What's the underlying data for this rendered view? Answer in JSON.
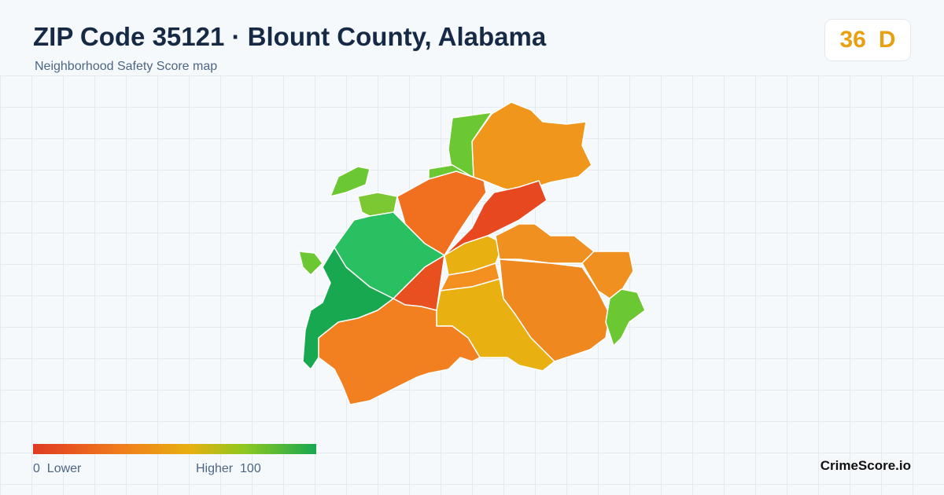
{
  "header": {
    "title": "ZIP Code 35121 · Blount County, Alabama",
    "subtitle": "Neighborhood Safety Score map"
  },
  "score": {
    "value": 36,
    "grade": "D"
  },
  "legend": {
    "min": 0,
    "min_label": "Lower",
    "max_label": "Higher",
    "max": 100
  },
  "brand": "CrimeScore.io"
}
